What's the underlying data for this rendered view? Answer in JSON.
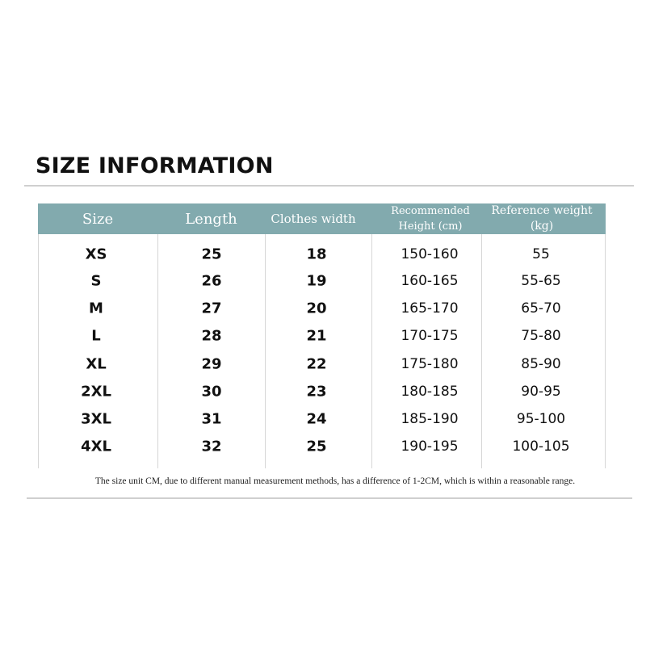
{
  "title": "SIZE INFORMATION",
  "header_color": "#82aaae",
  "columns": [
    "Size",
    "Length",
    "Clothes width",
    "Recommended Height (cm)",
    "Reference weight (kg)"
  ],
  "rows": [
    [
      "XS",
      "25",
      "18",
      "150-160",
      "55"
    ],
    [
      "S",
      "26",
      "19",
      "160-165",
      "55-65"
    ],
    [
      "M",
      "27",
      "20",
      "165-170",
      "65-70"
    ],
    [
      "L",
      "28",
      "21",
      "170-175",
      "75-80"
    ],
    [
      "XL",
      "29",
      "22",
      "175-180",
      "85-90"
    ],
    [
      "2XL",
      "30",
      "23",
      "180-185",
      "90-95"
    ],
    [
      "3XL",
      "31",
      "24",
      "185-190",
      "95-100"
    ],
    [
      "4XL",
      "32",
      "25",
      "190-195",
      "100-105"
    ]
  ],
  "note": "The size unit CM, due to different manual measurement methods, has a difference of 1-2CM, which is within a reasonable range."
}
